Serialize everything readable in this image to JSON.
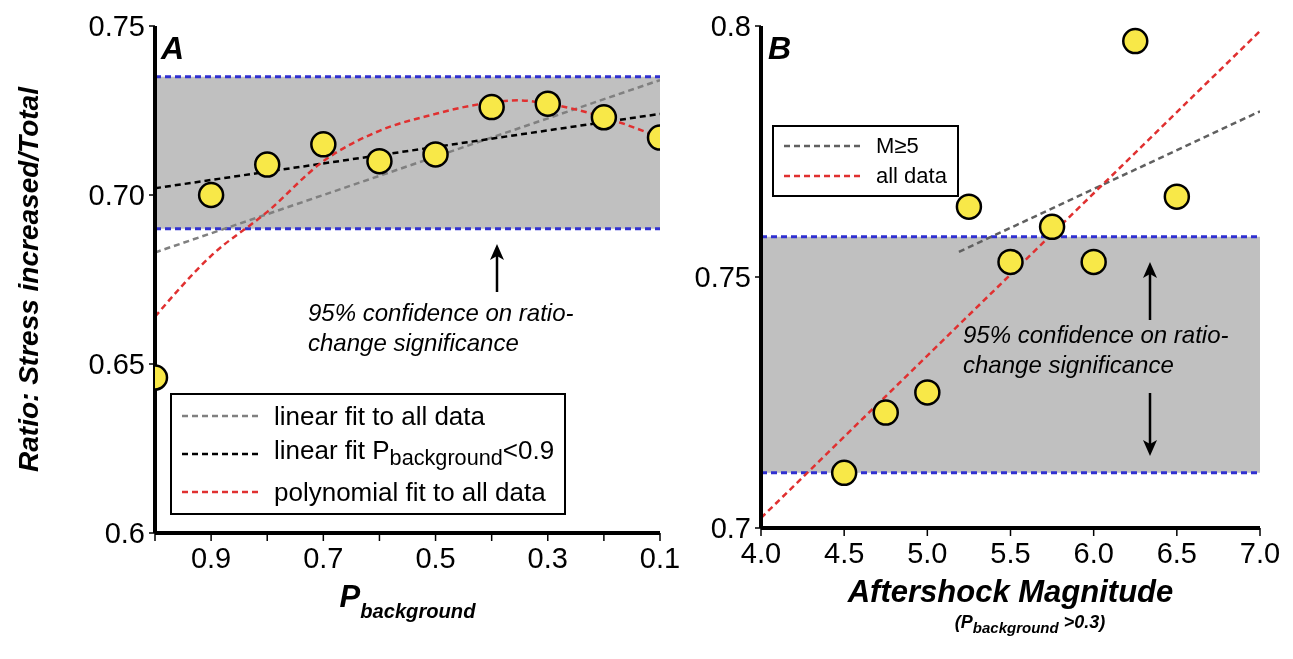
{
  "chart_data": [
    {
      "type": "scatter",
      "xlabel": "P$_{background}$",
      "ylabel": "Ratio: Stress increased/Total",
      "annotations": [
        "A",
        "95% confidence on ratio-change significance"
      ],
      "xlim": [
        1.0,
        0.1
      ],
      "xticks": [
        {
          "value": 1.0,
          "label": null
        },
        0.9,
        {
          "value": 0.8,
          "label": null
        },
        0.7,
        {
          "value": 0.6,
          "label": null
        },
        0.5,
        {
          "value": 0.4,
          "label": null
        },
        0.3,
        {
          "value": 0.2,
          "label": null
        },
        0.1
      ],
      "ylim": [
        0.6,
        0.75
      ],
      "yticks": [
        0.6,
        0.65,
        {
          "value": 0.7,
          "label": "0.70"
        },
        0.75
      ],
      "bands": [
        {
          "axis": "y",
          "from": 0.69,
          "to": 0.735,
          "color": "#c0c0c0"
        }
      ],
      "ref_lines": [
        {
          "axis": "y",
          "value": 0.735,
          "color": "#3030d0",
          "line_style": "dashed"
        },
        {
          "axis": "y",
          "value": 0.69,
          "color": "#3030d0",
          "line_style": "dashed"
        }
      ],
      "legend": "bottom left",
      "series": [
        {
          "name": "linear fit to all data",
          "type": "line",
          "line_style": "dashed",
          "color": "#808080",
          "x": [
            1.0,
            0.1
          ],
          "values": [
            0.683,
            0.734
          ]
        },
        {
          "name": "linear fit P$_{background}$<0.9",
          "type": "line",
          "line_style": "dashed",
          "color": "#000000",
          "x": [
            1.0,
            0.1
          ],
          "values": [
            0.702,
            0.724
          ]
        },
        {
          "name": "polynomial fit to all data",
          "type": "line",
          "line_style": "dashed",
          "color": "#e03030",
          "x": [
            1.0,
            0.9,
            0.8,
            0.7,
            0.6,
            0.5,
            0.45,
            0.35,
            0.3,
            0.2,
            0.1
          ],
          "values": [
            0.664,
            0.682,
            0.695,
            0.71,
            0.719,
            0.724,
            0.726,
            0.728,
            0.727,
            0.723,
            0.717
          ]
        },
        {
          "marker": "circle",
          "color": "#f8e848",
          "x": [
            1.0,
            0.9,
            0.8,
            0.7,
            0.6,
            0.5,
            0.4,
            0.3,
            0.2,
            0.1
          ],
          "values": [
            0.646,
            0.7,
            0.709,
            0.715,
            0.71,
            0.712,
            0.726,
            0.727,
            0.723,
            0.717
          ]
        }
      ]
    },
    {
      "type": "scatter",
      "xlabel": "Aftershock Magnitude",
      "annotations": [
        "B",
        "95% confidence on ratio-change significance",
        "(P$_{background}$ >0.3)"
      ],
      "xlim": [
        4.0,
        7.0
      ],
      "xticks": [
        {
          "value": 4.0,
          "label": "4.0"
        },
        4.5,
        {
          "value": 5.0,
          "label": "5.0"
        },
        5.5,
        {
          "value": 6.0,
          "label": "6.0"
        },
        6.5,
        {
          "value": 7.0,
          "label": "7.0"
        }
      ],
      "ylim": [
        0.7,
        0.8
      ],
      "yticks": [
        0.7,
        0.75,
        0.8
      ],
      "bands": [
        {
          "axis": "y",
          "from": 0.711,
          "to": 0.758,
          "color": "#c0c0c0"
        }
      ],
      "ref_lines": [
        {
          "axis": "y",
          "value": 0.758,
          "color": "#3030d0",
          "line_style": "dashed"
        },
        {
          "axis": "y",
          "value": 0.711,
          "color": "#3030d0",
          "line_style": "dashed"
        }
      ],
      "legend": "top left",
      "series": [
        {
          "name": "M≥5",
          "type": "line",
          "line_style": "dashed",
          "color": "#606060",
          "x": [
            5.19,
            7.0
          ],
          "values": [
            0.755,
            0.783
          ]
        },
        {
          "name": "all data",
          "type": "line",
          "line_style": "dashed",
          "color": "#e03030",
          "x": [
            4.0,
            7.0
          ],
          "values": [
            0.702,
            0.799
          ]
        },
        {
          "marker": "circle",
          "color": "#f8e848",
          "x": [
            4.5,
            4.75,
            5.0,
            5.25,
            5.5,
            5.75,
            6.0,
            6.25,
            6.5
          ],
          "values": [
            0.711,
            0.723,
            0.727,
            0.764,
            0.753,
            0.76,
            0.753,
            0.797,
            0.766
          ]
        }
      ]
    }
  ]
}
